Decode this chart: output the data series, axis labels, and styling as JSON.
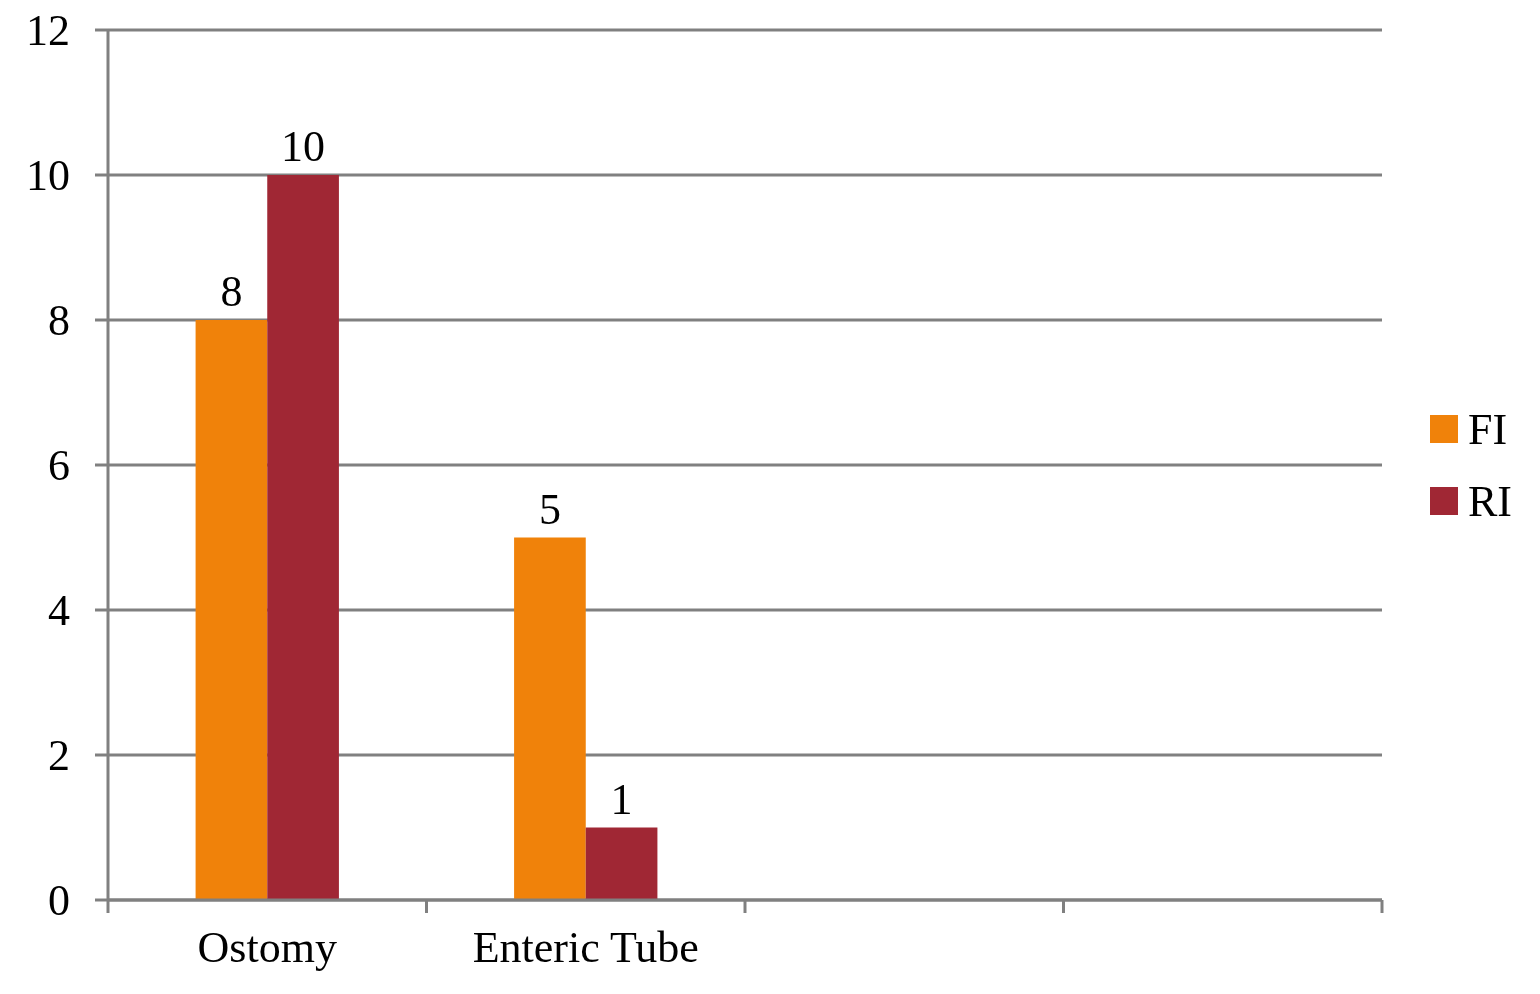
{
  "chart_data": {
    "type": "bar",
    "categories": [
      "Ostomy",
      "Enteric Tube",
      null,
      null
    ],
    "series": [
      {
        "name": "FI",
        "color": "#f0820a",
        "values": [
          8,
          5,
          null,
          null
        ]
      },
      {
        "name": "RI",
        "color": "#a02734",
        "values": [
          10,
          1,
          null,
          null
        ]
      }
    ],
    "ylim": [
      0,
      12
    ],
    "yticks": [
      0,
      2,
      4,
      6,
      8,
      10,
      12
    ],
    "grid": "y",
    "legend": "right",
    "data_labels": true
  }
}
